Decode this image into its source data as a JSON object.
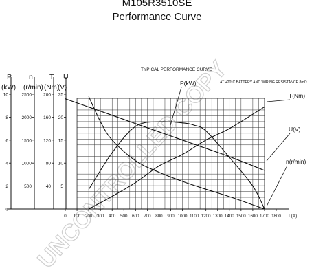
{
  "title": "M105R3510SE",
  "subtitle": "Performance Curve",
  "chart_data": {
    "type": "line",
    "title": "TYPICAL PERFORMANCE CURVE",
    "note": "AT +20°C  BATTERY AND WIRING RESISTANCE 8mΩ",
    "watermark": "UNCONTROLLED COPY",
    "xlabel": "I (A)",
    "xlim": [
      0,
      1800
    ],
    "x_ticks": [
      "0",
      "100",
      "200",
      "300",
      "400",
      "500",
      "600",
      "700",
      "800",
      "900",
      "1000",
      "1100",
      "1200",
      "1300",
      "1400",
      "1500",
      "1600",
      "1700",
      "1800"
    ],
    "grid": true,
    "axes": [
      {
        "unit": "P",
        "label": "(kW)",
        "ticks": [
          "0",
          "2",
          "4",
          "6",
          "8",
          "10"
        ],
        "range": [
          0,
          10
        ]
      },
      {
        "unit": "n",
        "label": "(r/min)",
        "ticks": [
          "500",
          "1000",
          "1500",
          "2000",
          "2500"
        ],
        "range": [
          0,
          2500
        ]
      },
      {
        "unit": "T",
        "label": "(Nm)",
        "ticks": [
          "40",
          "80",
          "120",
          "160",
          "200"
        ],
        "range": [
          0,
          200
        ]
      },
      {
        "unit": "U",
        "label": "(V)",
        "ticks": [
          "5",
          "10",
          "15",
          "20",
          "25"
        ],
        "range": [
          0,
          25
        ]
      }
    ],
    "series": [
      {
        "name": "P(kW)",
        "axis": 0,
        "x": [
          200,
          400,
          600,
          800,
          1000,
          1100,
          1200,
          1400,
          1600,
          1700
        ],
        "y": [
          1.7,
          4.9,
          7.2,
          7.6,
          7.5,
          7.3,
          6.8,
          4.5,
          2.0,
          0.0
        ]
      },
      {
        "name": "T(Nm)",
        "axis": 2,
        "x": [
          200,
          400,
          600,
          800,
          1000,
          1200,
          1400,
          1600,
          1700
        ],
        "y": [
          0,
          22,
          46,
          75,
          95,
          120,
          140,
          165,
          178
        ]
      },
      {
        "name": "U(V)",
        "axis": 3,
        "x": [
          0,
          200,
          400,
          600,
          800,
          1000,
          1200,
          1400,
          1700
        ],
        "y": [
          24,
          22.2,
          20.4,
          18.6,
          16.8,
          15.0,
          13.2,
          11.4,
          8.4
        ]
      },
      {
        "name": "n(r/min)",
        "axis": 1,
        "x": [
          200,
          300,
          400,
          600,
          800,
          1000,
          1200,
          1400,
          1600,
          1700
        ],
        "y": [
          2450,
          1900,
          1500,
          1050,
          800,
          600,
          430,
          270,
          90,
          0
        ]
      }
    ]
  }
}
